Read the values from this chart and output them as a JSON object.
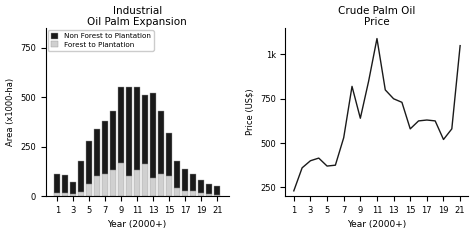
{
  "bar_years": [
    1,
    2,
    3,
    4,
    5,
    6,
    7,
    8,
    9,
    10,
    11,
    12,
    13,
    14,
    15,
    16,
    17,
    18,
    19,
    20,
    21
  ],
  "non_forest": [
    95,
    90,
    60,
    160,
    220,
    240,
    270,
    300,
    380,
    450,
    420,
    350,
    430,
    320,
    220,
    140,
    110,
    85,
    65,
    50,
    45
  ],
  "forest": [
    15,
    15,
    10,
    20,
    60,
    100,
    110,
    130,
    170,
    100,
    130,
    160,
    90,
    110,
    100,
    40,
    25,
    25,
    15,
    12,
    8
  ],
  "price_years": [
    1,
    2,
    3,
    4,
    5,
    6,
    7,
    8,
    9,
    10,
    11,
    12,
    13,
    14,
    15,
    16,
    17,
    18,
    19,
    20,
    21
  ],
  "price": [
    230,
    360,
    400,
    415,
    370,
    375,
    530,
    820,
    640,
    850,
    1090,
    800,
    750,
    730,
    580,
    625,
    630,
    625,
    520,
    580,
    1050
  ],
  "bar_title1": "Industrial",
  "bar_title2": "Oil Palm Expansion",
  "price_title1": "Crude Palm Oil",
  "price_title2": "Price",
  "bar_xlabel": "Year (2000+)",
  "bar_ylabel": "Area (x1000-ha)",
  "price_xlabel": "Year (2000+)",
  "price_ylabel": "Price (US$)",
  "bar_ylim": [
    0,
    850
  ],
  "price_ylim": [
    200,
    1150
  ],
  "bar_yticks": [
    0,
    250,
    500,
    750
  ],
  "price_yticks": [
    250,
    500,
    750,
    1000
  ],
  "bar_xticks": [
    1,
    3,
    5,
    7,
    9,
    11,
    13,
    15,
    17,
    19,
    21
  ],
  "price_xticks": [
    1,
    3,
    5,
    7,
    9,
    11,
    13,
    15,
    17,
    19,
    21
  ],
  "non_forest_color": "#1a1a1a",
  "forest_color": "#d0d0d0",
  "legend_labels": [
    "Non Forest to Plantation",
    "Forest to Plantation"
  ],
  "background_color": "#ffffff",
  "line_color": "#1a1a1a"
}
